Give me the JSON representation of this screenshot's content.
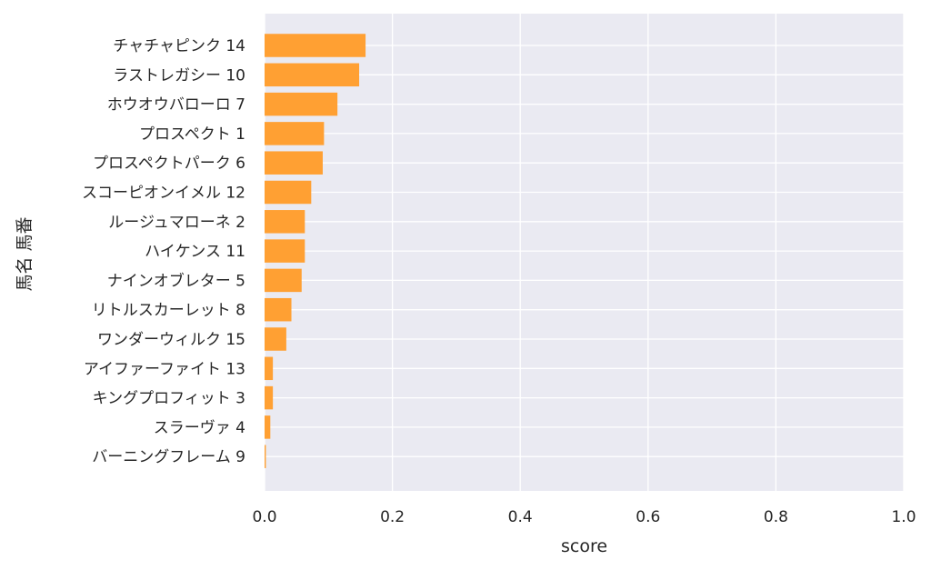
{
  "chart_data": {
    "type": "bar",
    "orientation": "horizontal",
    "categories": [
      "チャチャピンク 14",
      "ラストレガシー 10",
      "ホウオウバローロ 7",
      "プロスペクト 1",
      "プロスペクトパーク 6",
      "スコーピオンイメル 12",
      "ルージュマローネ 2",
      "ハイケンス 11",
      "ナインオブレター 5",
      "リトルスカーレット 8",
      "ワンダーウィルク 15",
      "アイファーファイト 13",
      "キングプロフィット 3",
      "スラーヴァ 4",
      "バーニングフレーム 9"
    ],
    "values": [
      0.158,
      0.148,
      0.114,
      0.093,
      0.091,
      0.073,
      0.063,
      0.063,
      0.058,
      0.042,
      0.034,
      0.013,
      0.013,
      0.009,
      0.002
    ],
    "title": "",
    "xlabel": "score",
    "ylabel": "馬名 馬番",
    "xlim": [
      0,
      1.0
    ],
    "xticks": [
      "0.0",
      "0.2",
      "0.4",
      "0.6",
      "0.8",
      "1.0"
    ],
    "grid": true,
    "bar_color": "#ffa033",
    "plot_background": "#eaeaf2",
    "grid_color": "#ffffff"
  }
}
